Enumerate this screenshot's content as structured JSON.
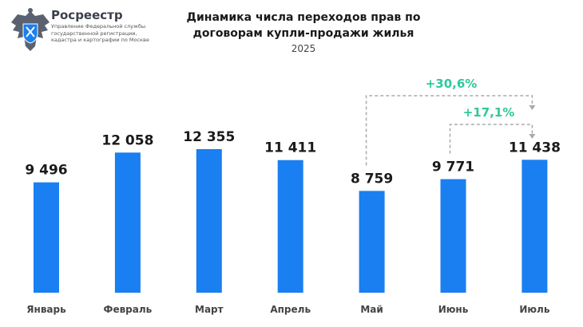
{
  "header": {
    "brand": "Росреестр",
    "brand_subtitle": "Управление Федеральной службы государственной регистрации, кадастра и картографии по Москве",
    "logo_icon": "double-headed-eagle-emblem-icon"
  },
  "chart_data": {
    "type": "bar",
    "title": "Динамика числа переходов прав по договорам купли-продажи жилья",
    "subtitle": "2025",
    "categories": [
      "Январь",
      "Февраль",
      "Март",
      "Апрель",
      "Май",
      "Июнь",
      "Июль"
    ],
    "values": [
      9496,
      12058,
      12355,
      11411,
      8759,
      9771,
      11438
    ],
    "value_labels": [
      "9 496",
      "12 058",
      "12 355",
      "11 411",
      "8 759",
      "9 771",
      "11 438"
    ],
    "xlabel": "",
    "ylabel": "",
    "ylim": [
      0,
      14000
    ],
    "grid": false,
    "bar_color": "#1a7ff0",
    "annotation_color": "#2ec99a",
    "annotations": [
      {
        "text": "+30,6%",
        "from": "Май",
        "to": "Июль"
      },
      {
        "text": "+17,1%",
        "from": "Июнь",
        "to": "Июль"
      }
    ]
  }
}
